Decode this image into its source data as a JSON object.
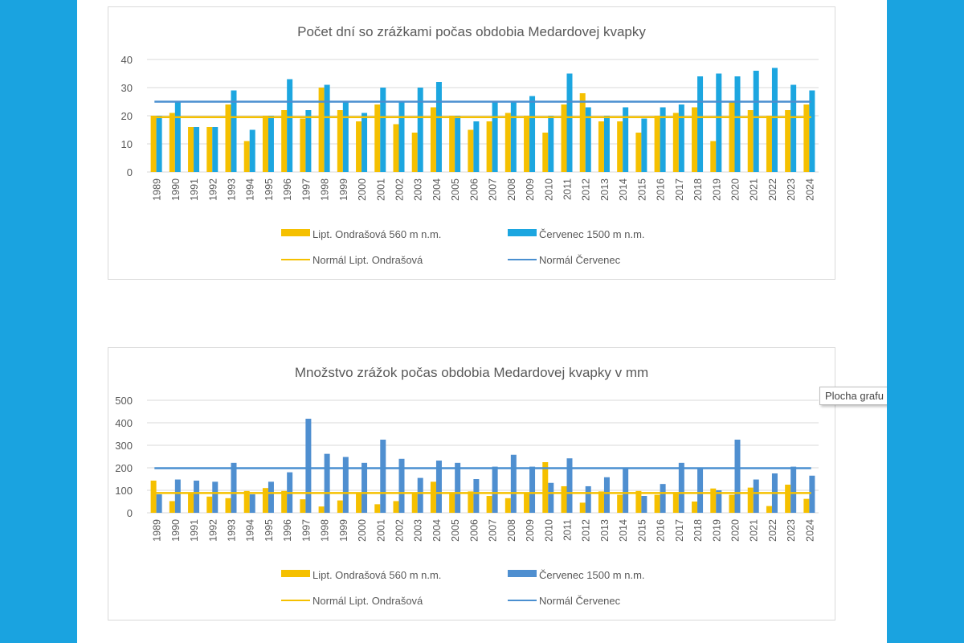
{
  "tooltip": {
    "text": "Plocha grafu"
  },
  "chart_data": [
    {
      "type": "bar",
      "title": "Počet dní so zrážkami počas obdobia Medardovej kvapky",
      "xlabel": "",
      "ylabel": "",
      "ylim": [
        0,
        40
      ],
      "yticks": [
        0,
        10,
        20,
        30,
        40
      ],
      "grid": true,
      "legend": "bottom",
      "categories": [
        "1989",
        "1990",
        "1991",
        "1992",
        "1993",
        "1994",
        "1995",
        "1996",
        "1997",
        "1998",
        "1999",
        "2000",
        "2001",
        "2002",
        "2003",
        "2004",
        "2005",
        "2006",
        "2007",
        "2008",
        "2009",
        "2010",
        "2011",
        "2012",
        "2013",
        "2014",
        "2015",
        "2016",
        "2017",
        "2018",
        "2019",
        "2020",
        "2021",
        "2022",
        "2023",
        "2024"
      ],
      "series": [
        {
          "name": "Lipt. Ondrašová 560 m n.m.",
          "kind": "bar",
          "color": "#f5c000",
          "values": [
            20,
            21,
            16,
            16,
            24,
            11,
            20,
            22,
            19,
            30,
            22,
            18,
            24,
            17,
            14,
            23,
            20,
            15,
            18,
            21,
            20,
            14,
            24,
            28,
            18,
            18,
            14,
            20,
            21,
            23,
            11,
            25,
            22,
            20,
            22,
            24
          ]
        },
        {
          "name": "Červenec 1500 m n.m.",
          "kind": "bar",
          "color": "#1ca6e0",
          "values": [
            20,
            25,
            16,
            16,
            29,
            15,
            20,
            33,
            22,
            31,
            25,
            21,
            30,
            25,
            30,
            32,
            20,
            18,
            25,
            25,
            27,
            20,
            35,
            23,
            20,
            23,
            19,
            23,
            24,
            34,
            35,
            34,
            36,
            37,
            31,
            29
          ]
        },
        {
          "name": "Normál Lipt. Ondrašová",
          "kind": "line",
          "color": "#f5c000",
          "value": 19.5
        },
        {
          "name": "Normál Červenec",
          "kind": "line",
          "color": "#4a8fd0",
          "value": 25
        }
      ]
    },
    {
      "type": "bar",
      "title": "Množstvo zrážok počas obdobia Medardovej kvapky v mm",
      "xlabel": "",
      "ylabel": "",
      "ylim": [
        0,
        500
      ],
      "yticks": [
        0,
        100,
        200,
        300,
        400,
        500
      ],
      "grid": true,
      "legend": "bottom",
      "categories": [
        "1989",
        "1990",
        "1991",
        "1992",
        "1993",
        "1994",
        "1995",
        "1996",
        "1997",
        "1998",
        "1999",
        "2000",
        "2001",
        "2002",
        "2003",
        "2004",
        "2005",
        "2006",
        "2007",
        "2008",
        "2009",
        "2010",
        "2011",
        "2012",
        "2013",
        "2014",
        "2015",
        "2016",
        "2017",
        "2018",
        "2019",
        "2020",
        "2021",
        "2022",
        "2023",
        "2024"
      ],
      "series": [
        {
          "name": "Lipt. Ondrašová 560 m n.m.",
          "kind": "bar",
          "color": "#f5c000",
          "values": [
            143,
            52,
            85,
            72,
            65,
            97,
            110,
            97,
            60,
            28,
            55,
            85,
            38,
            52,
            90,
            138,
            85,
            95,
            75,
            65,
            85,
            225,
            118,
            45,
            95,
            80,
            97,
            80,
            92,
            50,
            108,
            80,
            112,
            30,
            125,
            62
          ]
        },
        {
          "name": "Červenec 1500 m n.m.",
          "kind": "bar",
          "color": "#4f8fd0",
          "values": [
            82,
            148,
            143,
            138,
            222,
            82,
            138,
            180,
            418,
            262,
            248,
            222,
            325,
            240,
            155,
            232,
            222,
            150,
            205,
            258,
            205,
            133,
            242,
            118,
            158,
            200,
            75,
            128,
            222,
            198,
            100,
            325,
            148,
            175,
            205,
            165
          ]
        },
        {
          "name": "Normál Lipt. Ondrašová",
          "kind": "line",
          "color": "#f5c000",
          "value": 88
        },
        {
          "name": "Normál Červenec",
          "kind": "line",
          "color": "#4a8fd0",
          "value": 198
        }
      ]
    }
  ]
}
